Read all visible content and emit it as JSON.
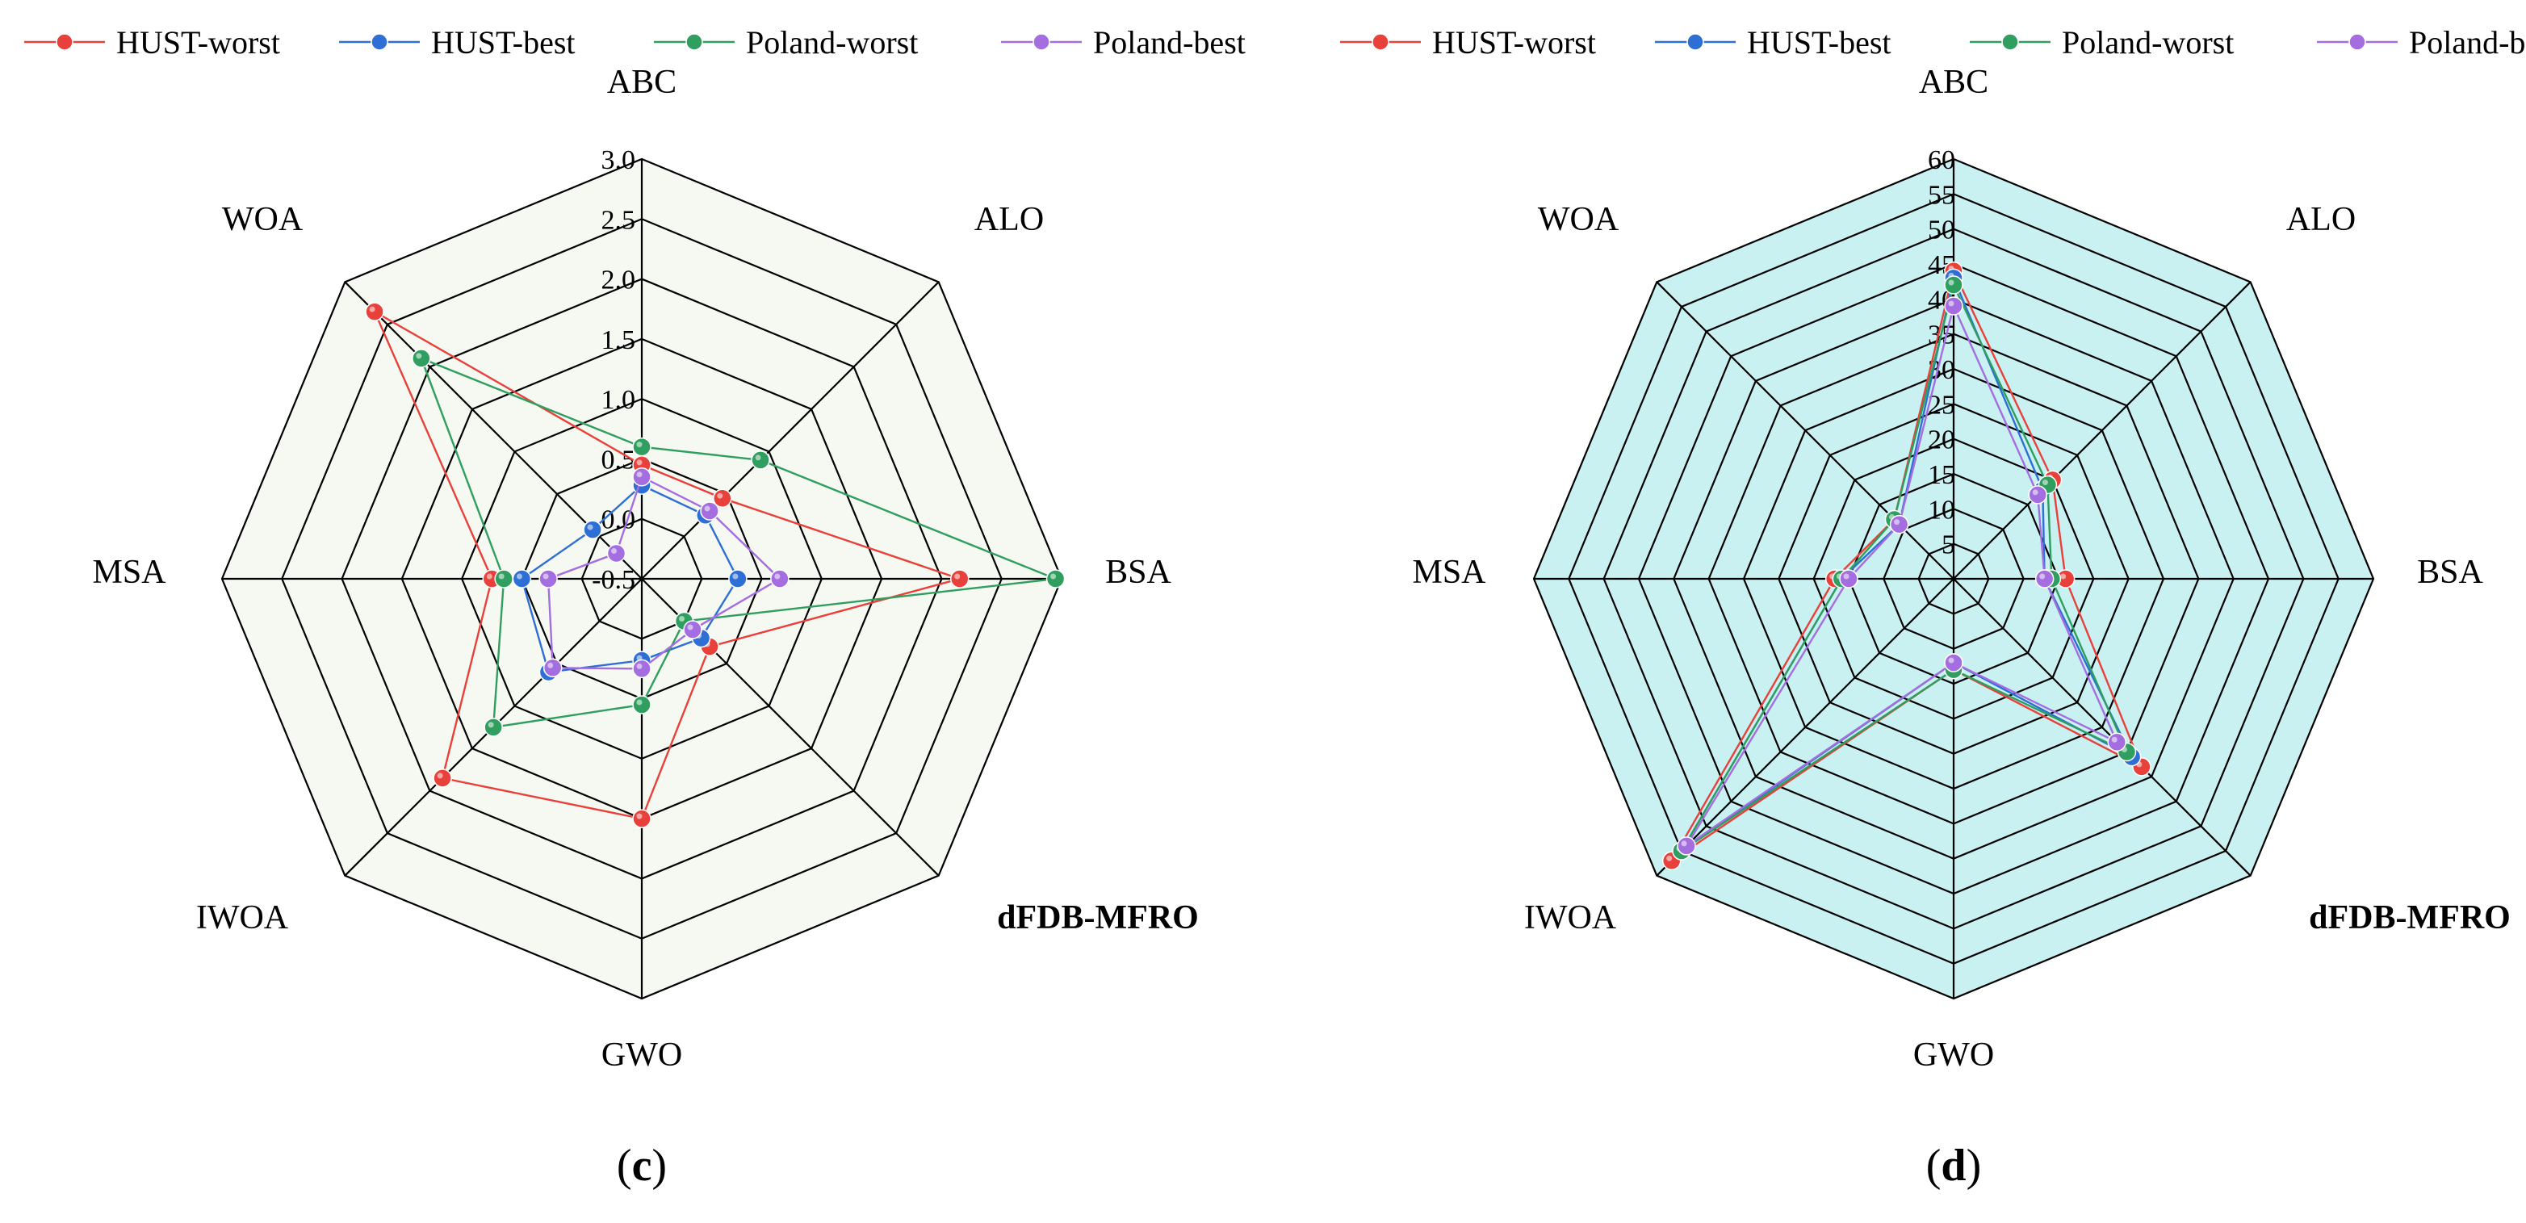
{
  "chart_data": [
    {
      "type": "radar",
      "panel_label": "(c)",
      "axes": [
        "ABC",
        "ALO",
        "BSA",
        "dFDB-MFRO",
        "GWO",
        "IWOA",
        "MSA",
        "WOA"
      ],
      "bold_axes": [
        "dFDB-MFRO"
      ],
      "rmin": -0.5,
      "rmax": 3.0,
      "ticks": [
        -0.5,
        0.0,
        0.5,
        1.0,
        1.5,
        2.0,
        2.5,
        3.0
      ],
      "tick_labels": [
        "-0.5",
        "0.0",
        "0.5",
        "1.0",
        "1.5",
        "2.0",
        "2.5",
        "3.0"
      ],
      "legend_position": "top",
      "background_color": "#f6f9f1",
      "series": [
        {
          "name": "HUST-worst",
          "color": "#e8403a",
          "values": [
            0.45,
            0.45,
            2.15,
            0.3,
            1.5,
            1.85,
            0.75,
            2.65
          ]
        },
        {
          "name": "HUST-best",
          "color": "#2e6fd6",
          "values": [
            0.28,
            0.25,
            0.3,
            0.2,
            0.18,
            0.6,
            0.5,
            0.08
          ]
        },
        {
          "name": "Poland-worst",
          "color": "#2f9e5f",
          "values": [
            0.6,
            0.9,
            2.95,
            0.0,
            0.55,
            1.25,
            0.65,
            2.1
          ]
        },
        {
          "name": "Poland-best",
          "color": "#a46de0",
          "values": [
            0.35,
            0.3,
            0.65,
            0.1,
            0.25,
            0.55,
            0.28,
            -0.2
          ]
        }
      ]
    },
    {
      "type": "radar",
      "panel_label": "(d)",
      "axes": [
        "ABC",
        "ALO",
        "BSA",
        "dFDB-MFRO",
        "GWO",
        "IWOA",
        "MSA",
        "WOA"
      ],
      "bold_axes": [
        "dFDB-MFRO"
      ],
      "rmin": 0,
      "rmax": 60,
      "ticks": [
        0,
        5,
        10,
        15,
        20,
        25,
        30,
        35,
        40,
        45,
        50,
        55,
        60
      ],
      "tick_labels": [
        "",
        "5",
        "10",
        "15",
        "20",
        "25",
        "30",
        "35",
        "40",
        "45",
        "50",
        "55",
        "60"
      ],
      "legend_position": "top",
      "background_color": "#c9f1f2",
      "series": [
        {
          "name": "HUST-worst",
          "color": "#e8403a",
          "values": [
            44,
            20,
            16,
            38,
            13,
            57,
            17,
            12
          ]
        },
        {
          "name": "HUST-best",
          "color": "#2e6fd6",
          "values": [
            43,
            18,
            13,
            36,
            12,
            55,
            16,
            11
          ]
        },
        {
          "name": "Poland-worst",
          "color": "#2f9e5f",
          "values": [
            42,
            19,
            14,
            35,
            13,
            55,
            16,
            12
          ]
        },
        {
          "name": "Poland-best",
          "color": "#a46de0",
          "values": [
            39,
            17,
            13,
            33,
            12,
            54,
            15,
            11
          ]
        }
      ]
    }
  ]
}
